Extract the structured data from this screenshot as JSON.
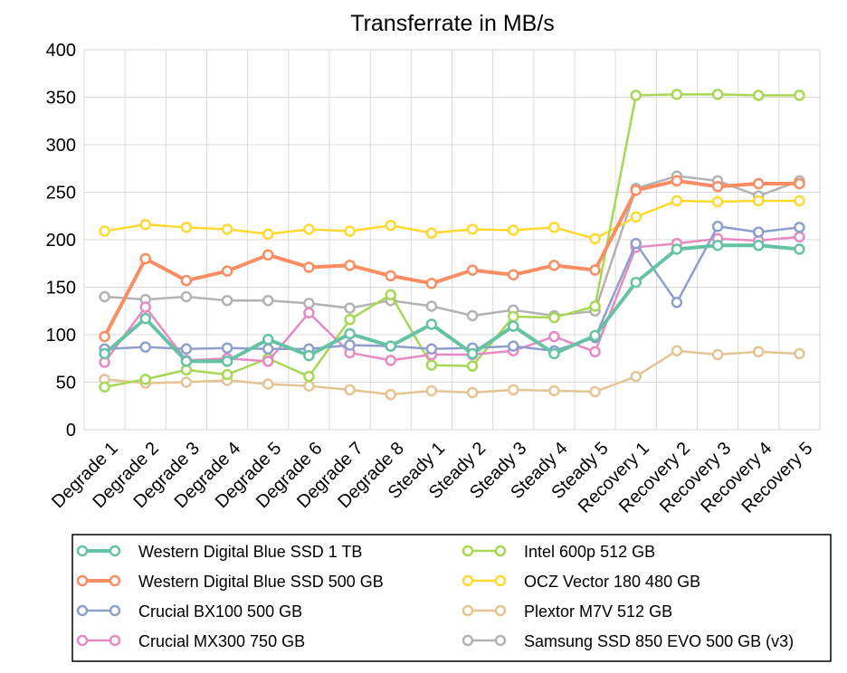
{
  "chart_data": {
    "type": "line",
    "title": "Transferrate in MB/s",
    "xlabel": "",
    "ylabel": "",
    "ylim": [
      0,
      400
    ],
    "yticks": [
      0,
      50,
      100,
      150,
      200,
      250,
      300,
      350,
      400
    ],
    "grid": true,
    "legend_position": "bottom",
    "categories": [
      "Degrade 1",
      "Degrade 2",
      "Degrade 3",
      "Degrade 4",
      "Degrade 5",
      "Degrade 6",
      "Degrade 7",
      "Degrade 8",
      "Steady 1",
      "Steady 2",
      "Steady 3",
      "Steady 4",
      "Steady 5",
      "Recovery 1",
      "Recovery 2",
      "Recovery 3",
      "Recovery 4",
      "Recovery 5"
    ],
    "series": [
      {
        "name": "Western Digital Blue SSD 1 TB",
        "color": "#66c2a5",
        "emphasis": true,
        "values": [
          80,
          117,
          72,
          72,
          95,
          78,
          101,
          88,
          111,
          80,
          109,
          80,
          99,
          155,
          190,
          194,
          194,
          190
        ]
      },
      {
        "name": "Western Digital Blue SSD 500 GB",
        "color": "#fc8d62",
        "emphasis": true,
        "values": [
          98,
          180,
          157,
          167,
          184,
          171,
          173,
          162,
          154,
          168,
          163,
          173,
          168,
          252,
          262,
          256,
          259,
          259
        ]
      },
      {
        "name": "Crucial BX100 500 GB",
        "color": "#8da0cb",
        "emphasis": false,
        "values": [
          85,
          87,
          85,
          86,
          85,
          85,
          89,
          88,
          85,
          86,
          88,
          83,
          97,
          196,
          134,
          214,
          208,
          213
        ]
      },
      {
        "name": "Crucial MX300 750 GB",
        "color": "#e78ac3",
        "emphasis": false,
        "values": [
          71,
          129,
          73,
          75,
          72,
          123,
          81,
          73,
          79,
          79,
          83,
          98,
          82,
          192,
          196,
          201,
          199,
          203
        ]
      },
      {
        "name": "Intel 600p 512 GB",
        "color": "#a6d854",
        "emphasis": false,
        "values": [
          45,
          53,
          63,
          58,
          75,
          56,
          116,
          142,
          68,
          67,
          119,
          118,
          130,
          352,
          353,
          353,
          352,
          352
        ]
      },
      {
        "name": "OCZ Vector 180 480 GB",
        "color": "#ffd92f",
        "emphasis": false,
        "values": [
          209,
          216,
          213,
          211,
          206,
          211,
          209,
          215,
          207,
          211,
          210,
          213,
          201,
          224,
          241,
          240,
          241,
          241
        ]
      },
      {
        "name": "Plextor M7V 512 GB",
        "color": "#e5c494",
        "emphasis": false,
        "values": [
          53,
          49,
          50,
          52,
          48,
          46,
          42,
          37,
          41,
          39,
          42,
          41,
          40,
          56,
          83,
          79,
          82,
          80
        ]
      },
      {
        "name": "Samsung SSD 850 EVO 500 GB (v3)",
        "color": "#b3b3b3",
        "emphasis": false,
        "values": [
          140,
          137,
          140,
          136,
          136,
          133,
          128,
          136,
          130,
          120,
          126,
          120,
          125,
          254,
          267,
          262,
          246,
          262
        ]
      }
    ]
  }
}
